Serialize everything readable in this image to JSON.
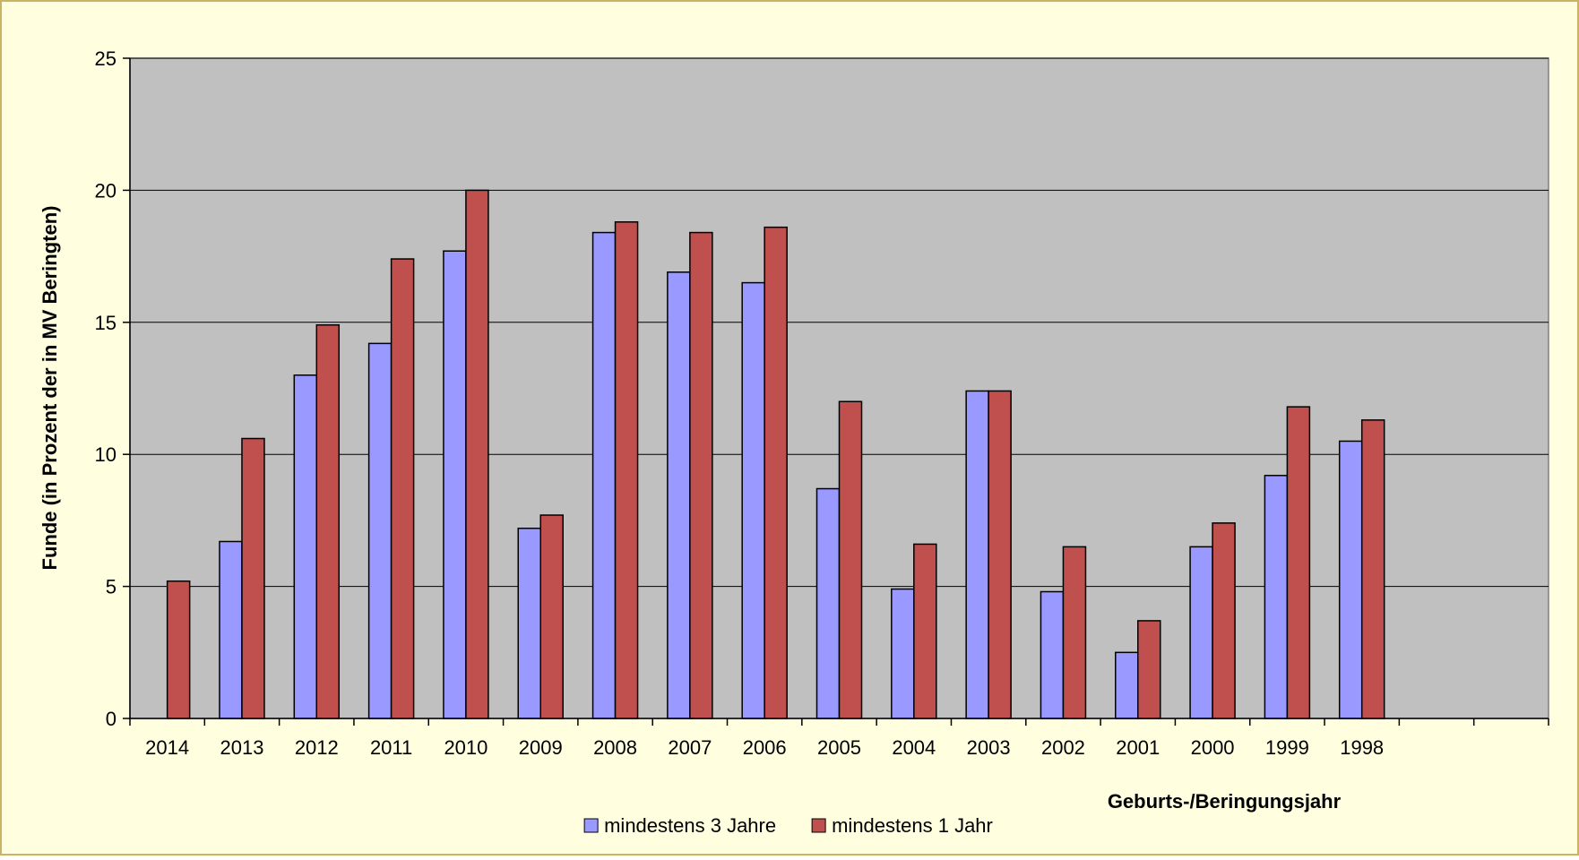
{
  "chart_data": {
    "type": "bar",
    "title": "",
    "xlabel": "Geburts-/Beringungsjahr",
    "ylabel": "Funde (in Prozent der in MV Beringten)",
    "ylim": [
      0,
      25
    ],
    "yticks": [
      "0",
      "5",
      "10",
      "15",
      "20",
      "25"
    ],
    "ytick_values": [
      0,
      5,
      10,
      15,
      20,
      25
    ],
    "categories": [
      "2014",
      "2013",
      "2012",
      "2011",
      "2010",
      "2009",
      "2008",
      "2007",
      "2006",
      "2005",
      "2004",
      "2003",
      "2002",
      "2001",
      "2000",
      "1999",
      "1998",
      "",
      ""
    ],
    "series": [
      {
        "name": "mindestens 3 Jahre",
        "color": "#9999ff",
        "values": [
          null,
          6.7,
          13.0,
          14.2,
          17.7,
          7.2,
          18.4,
          16.9,
          16.5,
          8.7,
          4.9,
          12.4,
          4.8,
          2.5,
          6.5,
          9.2,
          10.5,
          null,
          null
        ]
      },
      {
        "name": "mindestens 1 Jahr",
        "color": "#c0504d",
        "values": [
          5.2,
          10.6,
          14.9,
          17.4,
          20.0,
          7.7,
          18.8,
          18.4,
          18.6,
          12.0,
          6.6,
          12.4,
          6.5,
          3.7,
          7.4,
          11.8,
          11.3,
          null,
          null
        ]
      }
    ],
    "grid": true,
    "legend": "bottom-center",
    "colors": {
      "background": "#ffffe0",
      "frame_border": "#c8b464",
      "plot_area": "#c0c0c0"
    }
  }
}
